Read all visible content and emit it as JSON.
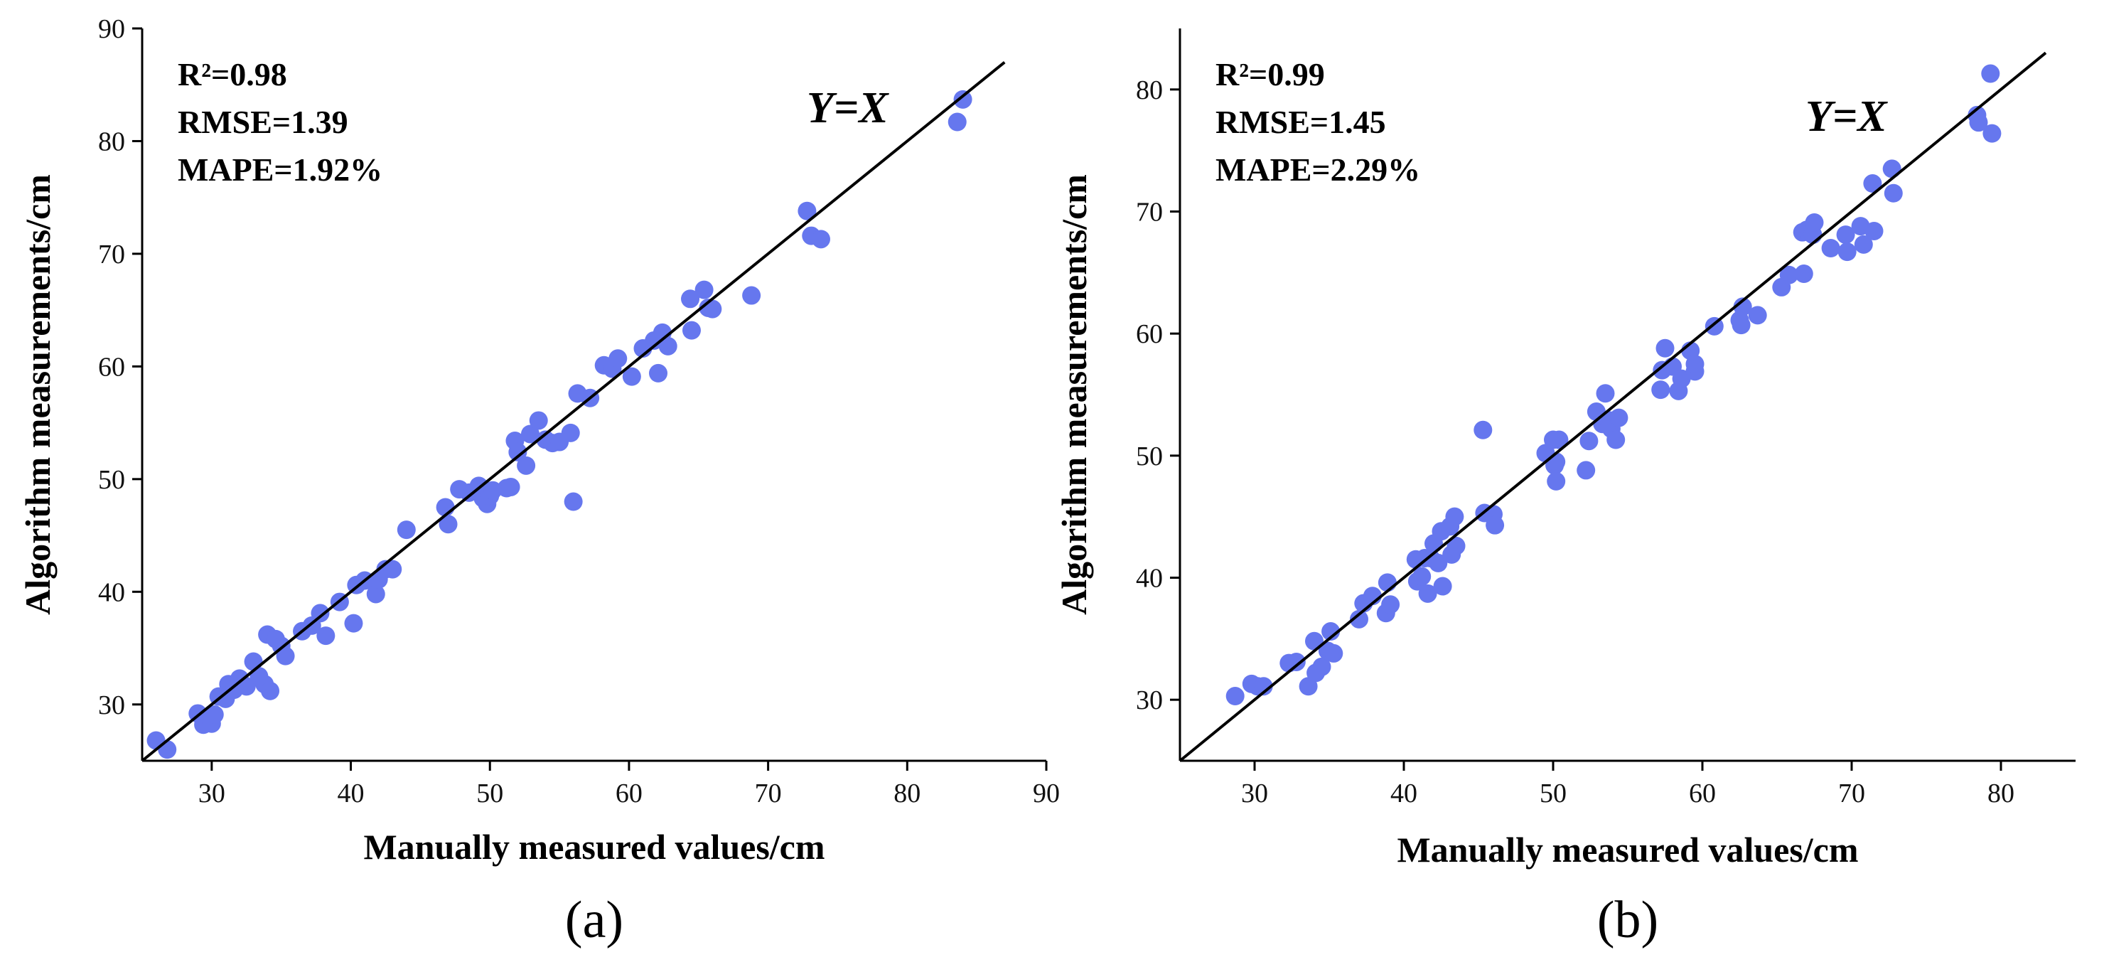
{
  "colors": {
    "points": "#6677ee",
    "line": "#000000",
    "background": "#ffffff"
  },
  "chart_data": [
    {
      "type": "scatter",
      "panel_label": "(a)",
      "xlabel": "Manually measured values/cm",
      "ylabel": "Algorithm measurements/cm",
      "xlim": [
        25,
        90
      ],
      "ylim": [
        25,
        90
      ],
      "xticks": [
        "30",
        "40",
        "50",
        "60",
        "70",
        "80",
        "90"
      ],
      "yticks": [
        "30",
        "40",
        "50",
        "60",
        "70",
        "80",
        "90"
      ],
      "stats": [
        "R²=0.98",
        "RMSE=1.39",
        "MAPE=1.92%"
      ],
      "line_label": "Y=X",
      "line": [
        25,
        87
      ],
      "points": [
        [
          26,
          26.8
        ],
        [
          26.8,
          26
        ],
        [
          29,
          29.2
        ],
        [
          29.4,
          28.2
        ],
        [
          30,
          28.3
        ],
        [
          30.2,
          29.1
        ],
        [
          30.5,
          30.7
        ],
        [
          31,
          30.5
        ],
        [
          31.2,
          31.8
        ],
        [
          31.6,
          31.3
        ],
        [
          32,
          32.3
        ],
        [
          32.5,
          31.6
        ],
        [
          33,
          33.8
        ],
        [
          33.4,
          32.5
        ],
        [
          33.8,
          31.8
        ],
        [
          34,
          36.2
        ],
        [
          34.2,
          31.2
        ],
        [
          34.6,
          35.8
        ],
        [
          35,
          35.2
        ],
        [
          35.3,
          34.3
        ],
        [
          36.5,
          36.5
        ],
        [
          37.2,
          37
        ],
        [
          37.8,
          38.1
        ],
        [
          38.2,
          36.1
        ],
        [
          39.2,
          39.1
        ],
        [
          40.2,
          37.2
        ],
        [
          40.4,
          40.6
        ],
        [
          41,
          41
        ],
        [
          41.8,
          39.8
        ],
        [
          42,
          41.1
        ],
        [
          42.5,
          42
        ],
        [
          43,
          42
        ],
        [
          44,
          45.5
        ],
        [
          46.8,
          47.5
        ],
        [
          47,
          46
        ],
        [
          47.8,
          49.1
        ],
        [
          48.5,
          48.8
        ],
        [
          49.2,
          49.4
        ],
        [
          49.5,
          48.3
        ],
        [
          49.8,
          47.8
        ],
        [
          50,
          48.5
        ],
        [
          50.2,
          49
        ],
        [
          51.2,
          49.2
        ],
        [
          51.5,
          49.3
        ],
        [
          51.8,
          53.4
        ],
        [
          52,
          52.4
        ],
        [
          52.6,
          51.2
        ],
        [
          52.9,
          54
        ],
        [
          53.5,
          55.2
        ],
        [
          54,
          53.5
        ],
        [
          54.5,
          53.2
        ],
        [
          55,
          53.3
        ],
        [
          55.8,
          54.1
        ],
        [
          56,
          48
        ],
        [
          56.3,
          57.6
        ],
        [
          57.2,
          57.2
        ],
        [
          58.2,
          60.1
        ],
        [
          58.8,
          59.8
        ],
        [
          59.2,
          60.7
        ],
        [
          60.2,
          59.1
        ],
        [
          61,
          61.6
        ],
        [
          61.8,
          62.3
        ],
        [
          62.1,
          59.4
        ],
        [
          62.4,
          63
        ],
        [
          62.8,
          61.8
        ],
        [
          64.4,
          66
        ],
        [
          64.5,
          63.2
        ],
        [
          65.4,
          66.8
        ],
        [
          65.7,
          65.2
        ],
        [
          66,
          65.1
        ],
        [
          68.8,
          66.3
        ],
        [
          72.8,
          73.8
        ],
        [
          73.1,
          71.6
        ],
        [
          73.8,
          71.3
        ],
        [
          83.6,
          81.7
        ],
        [
          84,
          83.7
        ]
      ]
    },
    {
      "type": "scatter",
      "panel_label": "(b)",
      "xlabel": "Manually measured values/cm",
      "ylabel": "Algorithm measurements/cm",
      "xlim": [
        25,
        85
      ],
      "ylim": [
        25,
        85
      ],
      "xticks": [
        "30",
        "40",
        "50",
        "60",
        "70",
        "80"
      ],
      "yticks": [
        "30",
        "40",
        "50",
        "60",
        "70",
        "80"
      ],
      "stats": [
        "R²=0.99",
        "RMSE=1.45",
        "MAPE=2.29%"
      ],
      "line_label": "Y=X",
      "line": [
        25,
        83
      ],
      "points": [
        [
          28.7,
          30.3
        ],
        [
          29.8,
          31.3
        ],
        [
          30.2,
          31.1
        ],
        [
          30.6,
          31.1
        ],
        [
          32.3,
          33
        ],
        [
          32.8,
          33.1
        ],
        [
          33.6,
          31.1
        ],
        [
          34,
          34.8
        ],
        [
          34.1,
          32.2
        ],
        [
          34.5,
          32.7
        ],
        [
          34.9,
          34
        ],
        [
          35.1,
          35.6
        ],
        [
          35.3,
          33.8
        ],
        [
          37,
          36.6
        ],
        [
          37.3,
          37.9
        ],
        [
          37.9,
          38.5
        ],
        [
          38.8,
          37.1
        ],
        [
          38.9,
          39.6
        ],
        [
          39.1,
          37.8
        ],
        [
          40.8,
          41.5
        ],
        [
          40.9,
          39.7
        ],
        [
          41.2,
          40.1
        ],
        [
          41.4,
          41.6
        ],
        [
          41.6,
          38.7
        ],
        [
          41.8,
          41.6
        ],
        [
          42,
          42.8
        ],
        [
          42.3,
          41.2
        ],
        [
          42.5,
          43.8
        ],
        [
          42.6,
          39.3
        ],
        [
          43.1,
          44.2
        ],
        [
          43.2,
          41.9
        ],
        [
          43.4,
          45
        ],
        [
          43.5,
          42.6
        ],
        [
          45.3,
          52.1
        ],
        [
          45.4,
          45.3
        ],
        [
          46,
          45.2
        ],
        [
          46.1,
          44.3
        ],
        [
          49.5,
          50.2
        ],
        [
          50,
          51.3
        ],
        [
          50.1,
          49.2
        ],
        [
          50.2,
          49.5
        ],
        [
          50.2,
          47.9
        ],
        [
          50.4,
          51.3
        ],
        [
          52.2,
          48.8
        ],
        [
          52.4,
          51.2
        ],
        [
          52.9,
          53.6
        ],
        [
          53.3,
          52.6
        ],
        [
          53.5,
          55.1
        ],
        [
          53.7,
          52.9
        ],
        [
          53.9,
          52.2
        ],
        [
          54.2,
          51.3
        ],
        [
          54.4,
          53.1
        ],
        [
          57.2,
          55.4
        ],
        [
          57.3,
          57
        ],
        [
          57.5,
          58.8
        ],
        [
          58,
          57.3
        ],
        [
          58.4,
          55.3
        ],
        [
          58.6,
          56.3
        ],
        [
          59.2,
          58.6
        ],
        [
          59.5,
          56.9
        ],
        [
          59.5,
          57.5
        ],
        [
          60.8,
          60.6
        ],
        [
          62.5,
          61.1
        ],
        [
          62.6,
          60.7
        ],
        [
          62.7,
          62.2
        ],
        [
          63.7,
          61.5
        ],
        [
          65.3,
          63.8
        ],
        [
          65.8,
          64.8
        ],
        [
          66.7,
          68.3
        ],
        [
          66.8,
          64.9
        ],
        [
          67,
          68.5
        ],
        [
          67.4,
          68.1
        ],
        [
          67.5,
          69.1
        ],
        [
          68.6,
          67
        ],
        [
          69.6,
          68.1
        ],
        [
          69.7,
          66.7
        ],
        [
          70.6,
          68.8
        ],
        [
          70.8,
          67.3
        ],
        [
          71.4,
          72.3
        ],
        [
          71.5,
          68.4
        ],
        [
          72.7,
          73.5
        ],
        [
          72.8,
          71.5
        ],
        [
          78.4,
          77.9
        ],
        [
          78.5,
          77.3
        ],
        [
          79.3,
          81.3
        ],
        [
          79.4,
          76.4
        ]
      ]
    }
  ]
}
